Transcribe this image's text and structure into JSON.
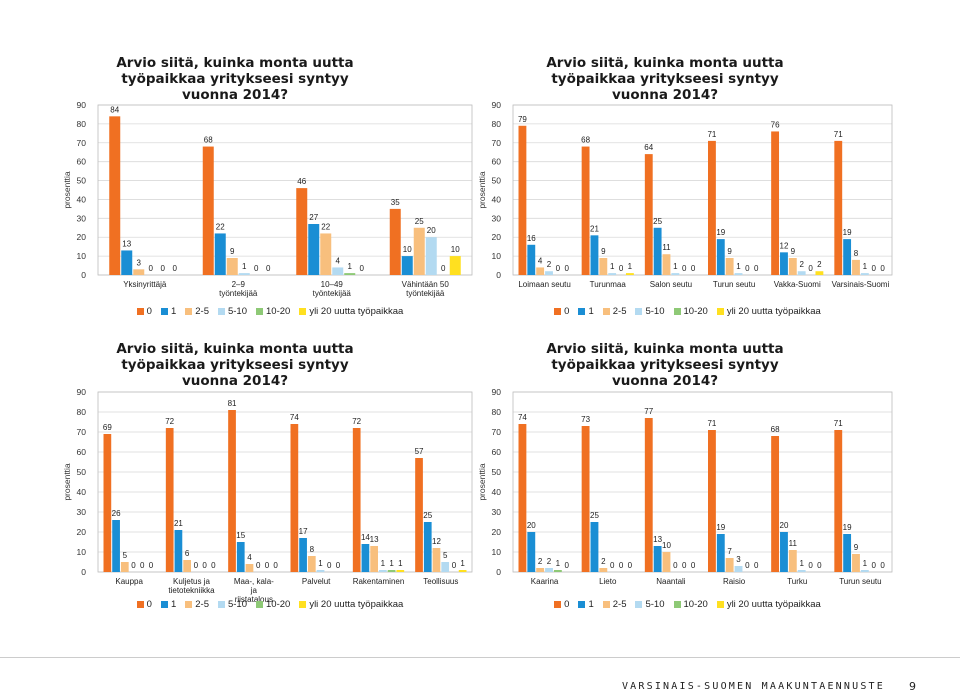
{
  "colors": [
    "#f07022",
    "#1a8ed4",
    "#f8bf7d",
    "#b3daf1",
    "#8ec976",
    "#ffe020"
  ],
  "legend_labels": [
    "0",
    "1",
    "2-5",
    "5-10",
    "10-20",
    "yli 20 uutta työpaikkaa"
  ],
  "ylabel": "prosenttia",
  "footer": {
    "text": "VARSINAIS-SUOMEN MAAKUNTAENNUSTE",
    "page": "9"
  },
  "chart_data": [
    {
      "type": "bar",
      "title": "Arvio siitä, kuinka monta uutta työpaikkaa yritykseesi syntyy vuonna 2014?",
      "ylabel": "prosenttia",
      "ylim": [
        0,
        90
      ],
      "yticks": [
        0,
        10,
        20,
        30,
        40,
        50,
        60,
        70,
        80,
        90
      ],
      "categories": [
        "Yksinyrittäjä",
        "2–9 työntekijää",
        "10–49 työntekijää",
        "Vähintään 50 työntekijää"
      ],
      "series": [
        {
          "name": "0",
          "values": [
            84,
            68,
            46,
            35
          ]
        },
        {
          "name": "1",
          "values": [
            13,
            22,
            27,
            10
          ]
        },
        {
          "name": "2-5",
          "values": [
            3,
            9,
            22,
            25
          ]
        },
        {
          "name": "5-10",
          "values": [
            0,
            1,
            4,
            20
          ]
        },
        {
          "name": "10-20",
          "values": [
            0,
            0,
            1,
            0
          ]
        },
        {
          "name": "yli 20 uutta työpaikkaa",
          "values": [
            0,
            0,
            0,
            10
          ]
        }
      ]
    },
    {
      "type": "bar",
      "title": "Arvio siitä, kuinka monta uutta työpaikkaa yritykseesi syntyy vuonna 2014?",
      "ylabel": "prosenttia",
      "ylim": [
        0,
        90
      ],
      "yticks": [
        0,
        10,
        20,
        30,
        40,
        50,
        60,
        70,
        80,
        90
      ],
      "categories": [
        "Loimaan seutu",
        "Turunmaa",
        "Salon seutu",
        "Turun seutu",
        "Vakka-Suomi",
        "Varsinais-Suomi"
      ],
      "series": [
        {
          "name": "0",
          "values": [
            79,
            68,
            64,
            71,
            76,
            71
          ]
        },
        {
          "name": "1",
          "values": [
            16,
            21,
            25,
            19,
            12,
            19
          ]
        },
        {
          "name": "2-5",
          "values": [
            4,
            9,
            11,
            9,
            9,
            8
          ]
        },
        {
          "name": "5-10",
          "values": [
            2,
            1,
            1,
            1,
            2,
            1
          ]
        },
        {
          "name": "10-20",
          "values": [
            0,
            0,
            0,
            0,
            0,
            0
          ]
        },
        {
          "name": "yli 20 uutta työpaikkaa",
          "values": [
            0,
            1,
            0,
            0,
            2,
            0
          ]
        }
      ]
    },
    {
      "type": "bar",
      "title": "Arvio siitä, kuinka monta uutta työpaikkaa yritykseesi syntyy vuonna 2014?",
      "ylabel": "prosenttia",
      "ylim": [
        0,
        90
      ],
      "yticks": [
        0,
        10,
        20,
        30,
        40,
        50,
        60,
        70,
        80,
        90
      ],
      "categories": [
        "Kauppa",
        "Kuljetus ja tietotekniikka",
        "Maa-, kala- ja riistatalous",
        "Palvelut",
        "Rakentaminen",
        "Teollisuus"
      ],
      "series": [
        {
          "name": "0",
          "values": [
            69,
            72,
            81,
            74,
            72,
            57
          ]
        },
        {
          "name": "1",
          "values": [
            26,
            21,
            15,
            17,
            14,
            25
          ]
        },
        {
          "name": "2-5",
          "values": [
            5,
            6,
            4,
            8,
            13,
            12
          ]
        },
        {
          "name": "5-10",
          "values": [
            0,
            0,
            0,
            1,
            1,
            5
          ]
        },
        {
          "name": "10-20",
          "values": [
            0,
            0,
            0,
            0,
            1,
            0
          ]
        },
        {
          "name": "yli 20 uutta työpaikkaa",
          "values": [
            0,
            0,
            0,
            0,
            1,
            1
          ]
        }
      ]
    },
    {
      "type": "bar",
      "title": "Arvio siitä, kuinka monta uutta työpaikkaa yritykseesi syntyy vuonna 2014?",
      "ylabel": "prosenttia",
      "ylim": [
        0,
        90
      ],
      "yticks": [
        0,
        10,
        20,
        30,
        40,
        50,
        60,
        70,
        80,
        90
      ],
      "categories": [
        "Kaarina",
        "Lieto",
        "Naantali",
        "Raisio",
        "Turku",
        "Turun seutu"
      ],
      "series": [
        {
          "name": "0",
          "values": [
            74,
            73,
            77,
            71,
            68,
            71
          ]
        },
        {
          "name": "1",
          "values": [
            20,
            25,
            13,
            19,
            20,
            19
          ]
        },
        {
          "name": "2-5",
          "values": [
            2,
            2,
            10,
            7,
            11,
            9
          ]
        },
        {
          "name": "5-10",
          "values": [
            2,
            0,
            0,
            3,
            1,
            1
          ]
        },
        {
          "name": "10-20",
          "values": [
            1,
            0,
            0,
            0,
            0,
            0
          ]
        },
        {
          "name": "yli 20 uutta työpaikkaa",
          "values": [
            0,
            0,
            0,
            0,
            0,
            0
          ]
        }
      ]
    }
  ]
}
